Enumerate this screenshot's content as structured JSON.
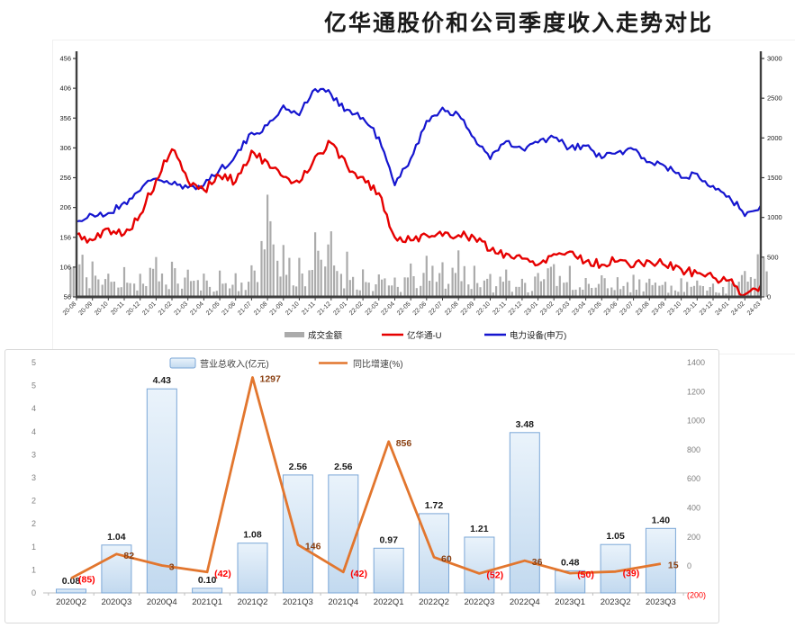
{
  "page_title": "亿华通股价和公司季度收入走势对比",
  "colors": {
    "stock_line": "#e60000",
    "index_line": "#1515cf",
    "volume_bar": "#ababab",
    "revenue_bar_fill_top": "#eaf3fb",
    "revenue_bar_fill_bottom": "#c2d9ef",
    "revenue_bar_border": "#7ba7d7",
    "growth_line": "#e2762e",
    "growth_label_positive": "#8a4012",
    "growth_label_negative": "#ff0000",
    "axis_gray": "#808080"
  },
  "chart_data": [
    {
      "type": "line",
      "title": "",
      "x": [
        "20-08",
        "20-09",
        "20-10",
        "20-11",
        "20-12",
        "21-01",
        "21-02",
        "21-03",
        "21-04",
        "21-05",
        "21-06",
        "21-07",
        "21-08",
        "21-09",
        "21-10",
        "21-11",
        "21-12",
        "22-01",
        "22-02",
        "22-03",
        "22-04",
        "22-05",
        "22-06",
        "22-07",
        "22-08",
        "22-09",
        "22-10",
        "22-11",
        "22-12",
        "23-01",
        "23-02",
        "23-03",
        "23-04",
        "23-05",
        "23-06",
        "23-07",
        "23-08",
        "23-09",
        "23-10",
        "23-11",
        "23-12",
        "24-01",
        "24-02",
        "24-03"
      ],
      "left_axis": {
        "ticks": [
          "456",
          "406",
          "356",
          "306",
          "256",
          "206",
          "156",
          "106",
          "56"
        ],
        "min": 56,
        "max": 456
      },
      "right_axis": {
        "ticks": [
          "3000",
          "2500",
          "2000",
          "1500",
          "1000",
          "500",
          "0"
        ],
        "min": 0,
        "max": 3000
      },
      "legend_position": "bottom",
      "grid": false,
      "series": [
        {
          "name": "成交金额",
          "kind": "bar",
          "axis": "right",
          "values": [
            750,
            480,
            320,
            420,
            310,
            520,
            460,
            380,
            300,
            340,
            310,
            420,
            1500,
            700,
            520,
            820,
            880,
            580,
            360,
            300,
            260,
            420,
            520,
            460,
            620,
            420,
            300,
            360,
            260,
            320,
            480,
            420,
            260,
            300,
            260,
            320,
            260,
            220,
            260,
            220,
            190,
            220,
            380,
            680
          ]
        },
        {
          "name": "亿华通-U",
          "kind": "line",
          "axis": "left",
          "values": [
            160,
            150,
            170,
            160,
            195,
            250,
            305,
            250,
            235,
            260,
            250,
            300,
            280,
            255,
            250,
            290,
            315,
            275,
            255,
            230,
            155,
            150,
            162,
            158,
            162,
            155,
            135,
            128,
            120,
            112,
            128,
            132,
            116,
            110,
            118,
            108,
            116,
            110,
            102,
            96,
            90,
            82,
            60,
            76
          ]
        },
        {
          "name": "电力设备(申万)",
          "kind": "line",
          "axis": "right",
          "values": [
            950,
            1020,
            1050,
            1180,
            1350,
            1500,
            1420,
            1360,
            1420,
            1600,
            1780,
            2050,
            2150,
            2400,
            2300,
            2620,
            2550,
            2350,
            2250,
            2000,
            1400,
            1750,
            2200,
            2380,
            2280,
            2000,
            1750,
            1950,
            1850,
            1950,
            2000,
            1870,
            1900,
            1750,
            1820,
            1850,
            1700,
            1650,
            1500,
            1550,
            1400,
            1280,
            1020,
            1150
          ]
        }
      ]
    },
    {
      "type": "bar",
      "title": "",
      "categories": [
        "2020Q2",
        "2020Q3",
        "2020Q4",
        "2021Q1",
        "2021Q2",
        "2021Q3",
        "2021Q4",
        "2022Q1",
        "2022Q2",
        "2022Q3",
        "2022Q4",
        "2023Q1",
        "2023Q2",
        "2023Q3"
      ],
      "left_axis": {
        "ticks": [
          "5",
          "5",
          "4",
          "4",
          "3",
          "3",
          "2",
          "2",
          "1",
          "1",
          "0"
        ],
        "min": 0,
        "max": 5
      },
      "right_axis": {
        "ticks": [
          "1400",
          "1200",
          "1000",
          "800",
          "600",
          "400",
          "200",
          "0",
          "(200)"
        ],
        "min": -200,
        "max": 1400
      },
      "legend_position": "top",
      "grid": false,
      "series": [
        {
          "name": "营业总收入(亿元)",
          "kind": "bar",
          "axis": "left",
          "values": [
            0.08,
            1.04,
            4.43,
            0.1,
            1.08,
            2.56,
            2.56,
            0.97,
            1.72,
            1.21,
            3.48,
            0.48,
            1.05,
            1.4
          ],
          "labels": [
            "0.08",
            "1.04",
            "4.43",
            "0.10",
            "1.08",
            "2.56",
            "2.56",
            "0.97",
            "1.72",
            "1.21",
            "3.48",
            "0.48",
            "1.05",
            "1.40"
          ]
        },
        {
          "name": "同比增速(%)",
          "kind": "line",
          "axis": "right",
          "values": [
            -85,
            82,
            3,
            -42,
            1297,
            146,
            -42,
            856,
            60,
            -52,
            36,
            -50,
            -39,
            15
          ],
          "labels": [
            "(85)",
            "82",
            "3",
            "(42)",
            "1297",
            "146",
            "(42)",
            "856",
            "60",
            "(52)",
            "36",
            "(50)",
            "(39)",
            "15"
          ]
        }
      ]
    }
  ]
}
